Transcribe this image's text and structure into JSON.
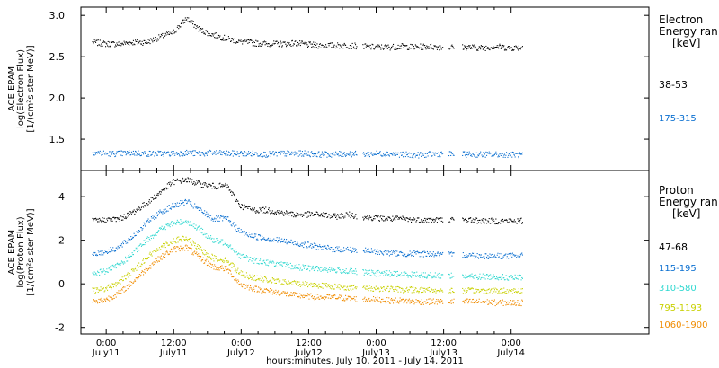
{
  "chart_data": [
    {
      "type": "scatter",
      "panel": "electron",
      "ylabel_lines": [
        "ACE EPAM",
        "log(Electron Flux)",
        "[1/(cm²s ster MeV)]"
      ],
      "legend_title_lines": [
        "Electron",
        "Energy ran",
        "[keV]"
      ],
      "ylim": [
        1.12,
        3.1
      ],
      "yticks": [
        1.5,
        2.0,
        2.5,
        3.0
      ],
      "ytick_labels": [
        "1.5",
        "2.0",
        "2.5",
        "3.0"
      ],
      "series": [
        {
          "name": "38-53",
          "color": "#000000",
          "base_values": [
            2.68,
            2.66,
            2.66,
            2.68,
            2.68,
            2.74,
            2.8,
            2.97,
            2.83,
            2.77,
            2.72,
            2.69,
            2.67,
            2.66,
            2.66,
            2.67,
            2.65,
            2.64,
            2.64,
            2.64,
            2.63,
            2.62,
            2.62,
            2.63,
            2.62,
            2.63,
            2.62,
            2.62,
            2.62,
            2.61,
            2.63,
            2.61,
            2.62
          ]
        },
        {
          "name": "175-315",
          "color": "#0a6fd0",
          "base_values": [
            1.35,
            1.33,
            1.33,
            1.34,
            1.33,
            1.33,
            1.33,
            1.34,
            1.33,
            1.34,
            1.33,
            1.33,
            1.33,
            1.32,
            1.33,
            1.33,
            1.33,
            1.32,
            1.32,
            1.33,
            1.32,
            1.33,
            1.33,
            1.32,
            1.31,
            1.32,
            1.33,
            1.32,
            1.32,
            1.32,
            1.32,
            1.32,
            1.31
          ]
        }
      ]
    },
    {
      "type": "scatter",
      "panel": "proton",
      "ylabel_lines": [
        "ACE EPAM",
        "log(Proton Flux)",
        "[1/(cm²s ster MeV)]"
      ],
      "legend_title_lines": [
        "Proton",
        "Energy ran",
        "[keV]"
      ],
      "ylim": [
        -2.3,
        5.2
      ],
      "yticks": [
        -2,
        0,
        2,
        4
      ],
      "ytick_labels": [
        "-2",
        "0",
        "2",
        "4"
      ],
      "series": [
        {
          "name": "47-68",
          "color": "#000000",
          "base_values": [
            2.9,
            2.95,
            3.0,
            3.3,
            3.7,
            4.2,
            4.7,
            4.8,
            4.6,
            4.5,
            4.5,
            3.6,
            3.4,
            3.4,
            3.3,
            3.2,
            3.2,
            3.2,
            3.1,
            3.2,
            3.1,
            3.05,
            3.0,
            3.0,
            2.95,
            2.95,
            2.95,
            2.95,
            2.95,
            2.9,
            2.9,
            2.9,
            2.9
          ]
        },
        {
          "name": "115-195",
          "color": "#0a6fd0",
          "base_values": [
            1.4,
            1.5,
            1.7,
            2.2,
            2.8,
            3.3,
            3.6,
            3.8,
            3.4,
            3.0,
            3.0,
            2.4,
            2.2,
            2.1,
            2.0,
            1.9,
            1.8,
            1.7,
            1.6,
            1.6,
            1.55,
            1.5,
            1.45,
            1.4,
            1.4,
            1.4,
            1.35,
            1.35,
            1.35,
            1.3,
            1.3,
            1.3,
            1.3
          ]
        },
        {
          "name": "310-580",
          "color": "#30d8d0",
          "base_values": [
            0.5,
            0.6,
            0.9,
            1.4,
            2.0,
            2.5,
            2.8,
            2.9,
            2.5,
            2.0,
            1.9,
            1.3,
            1.1,
            1.0,
            0.9,
            0.8,
            0.75,
            0.7,
            0.65,
            0.6,
            0.55,
            0.5,
            0.5,
            0.45,
            0.45,
            0.4,
            0.4,
            0.4,
            0.35,
            0.35,
            0.35,
            0.3,
            0.3
          ]
        },
        {
          "name": "795-1193",
          "color": "#c8d000",
          "base_values": [
            -0.3,
            -0.2,
            0.1,
            0.6,
            1.2,
            1.7,
            2.0,
            2.1,
            1.6,
            1.2,
            1.1,
            0.5,
            0.3,
            0.2,
            0.1,
            0.05,
            0.0,
            -0.05,
            -0.1,
            -0.15,
            -0.15,
            -0.2,
            -0.2,
            -0.25,
            -0.25,
            -0.25,
            -0.3,
            -0.3,
            -0.3,
            -0.3,
            -0.3,
            -0.3,
            -0.3
          ]
        },
        {
          "name": "1060-1900",
          "color": "#f08c00",
          "base_values": [
            -0.8,
            -0.7,
            -0.4,
            0.1,
            0.7,
            1.2,
            1.6,
            1.7,
            1.2,
            0.8,
            0.7,
            0.0,
            -0.2,
            -0.3,
            -0.4,
            -0.5,
            -0.55,
            -0.6,
            -0.6,
            -0.65,
            -0.7,
            -0.7,
            -0.75,
            -0.75,
            -0.8,
            -0.8,
            -0.8,
            -0.8,
            -0.8,
            -0.8,
            -0.85,
            -0.85,
            -0.85
          ]
        }
      ]
    }
  ],
  "shared_x": {
    "xlabel": "hours:minutes, July 10, 2011 - July 14, 2011",
    "xlim_hours": [
      -4.5,
      96.5
    ],
    "tick_labels": [
      {
        "hour": 0,
        "time": "0:00",
        "date": "July11"
      },
      {
        "hour": 12,
        "time": "12:00",
        "date": "July11"
      },
      {
        "hour": 24,
        "time": "0:00",
        "date": "July12"
      },
      {
        "hour": 36,
        "time": "12:00",
        "date": "July12"
      },
      {
        "hour": 48,
        "time": "0:00",
        "date": "July13"
      },
      {
        "hour": 60,
        "time": "12:00",
        "date": "July13"
      },
      {
        "hour": 72,
        "time": "0:00",
        "date": "July14"
      }
    ],
    "data_range_hours": [
      -2.5,
      74.0
    ],
    "data_gaps_hours": [
      [
        44.5,
        45.5
      ],
      [
        59.8,
        60.8
      ],
      [
        61.8,
        63.2
      ]
    ]
  }
}
